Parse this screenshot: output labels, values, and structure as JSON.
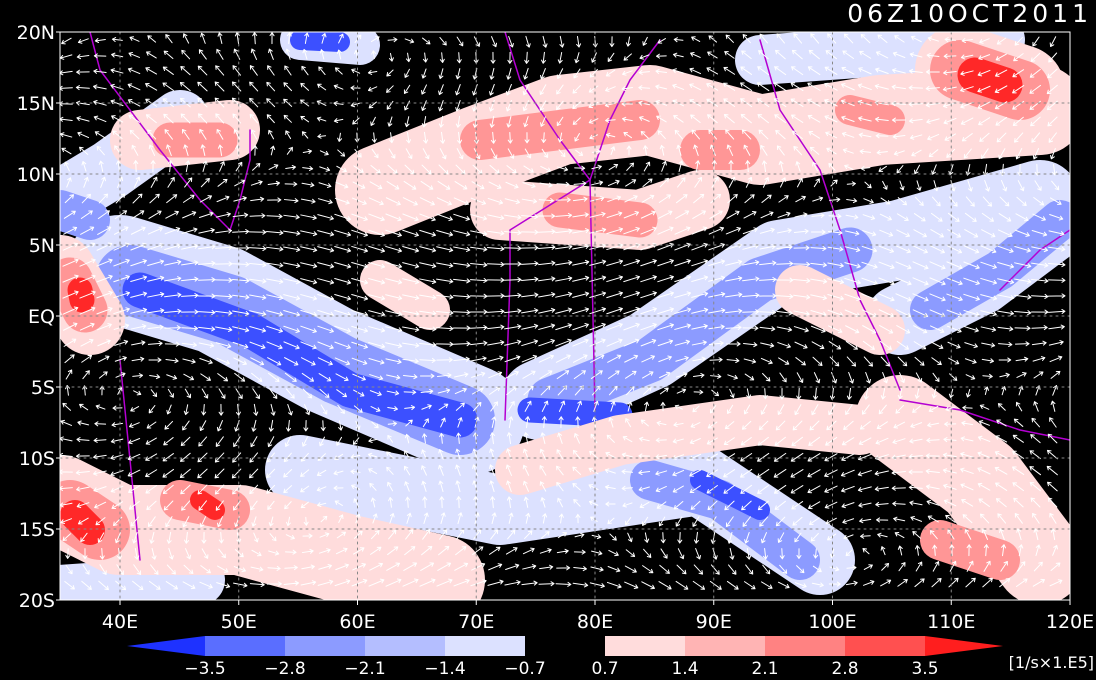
{
  "title": "06Z10OCT2011",
  "x_axis": {
    "labels": [
      "40E",
      "50E",
      "60E",
      "70E",
      "80E",
      "90E",
      "100E",
      "110E",
      "120E"
    ]
  },
  "y_axis": {
    "labels": [
      "20N",
      "15N",
      "10N",
      "5N",
      "EQ",
      "5S",
      "10S",
      "15S",
      "20S"
    ]
  },
  "colorbar": {
    "labels": [
      "−3.5",
      "−2.8",
      "−2.1",
      "−1.4",
      "−0.7",
      "0.7",
      "1.4",
      "2.1",
      "2.8",
      "3.5"
    ],
    "colors": [
      "#1e32ff",
      "#5a6eff",
      "#8c9bff",
      "#b4beff",
      "#dce1ff",
      "#000000",
      "#ffdcdc",
      "#ffb4b4",
      "#ff8282",
      "#ff5050",
      "#ff1e1e"
    ],
    "unit": "[1/s×1.E5]"
  }
}
